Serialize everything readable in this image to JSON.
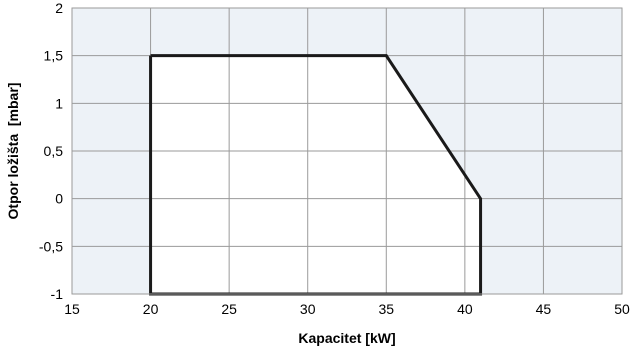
{
  "chart_data": {
    "type": "line",
    "title": "",
    "xlabel": "Kapacitet [kW]",
    "ylabel": "Otpor ložišta  [mbar]",
    "xlim": [
      15,
      50
    ],
    "ylim": [
      -1,
      2
    ],
    "x_ticks": [
      15,
      20,
      25,
      30,
      35,
      40,
      45,
      50
    ],
    "y_ticks": [
      -1,
      -0.5,
      0,
      0.5,
      1,
      1.5,
      2
    ],
    "x_tick_labels": [
      "15",
      "20",
      "25",
      "30",
      "35",
      "40",
      "45",
      "50"
    ],
    "y_tick_labels": [
      "-1",
      "-0,5",
      "0",
      "0,5",
      "1",
      "1,5",
      "2"
    ],
    "grid": true,
    "legend": "none",
    "colors": {
      "plot_background": "#edf2f7",
      "region_fill": "#ffffff",
      "grid": "#9a9a9a",
      "outline": "#1a1a1a",
      "text": "#000000"
    },
    "series": [
      {
        "x": [
          20,
          35,
          41,
          41,
          20,
          20
        ],
        "y": [
          1.5,
          1.5,
          0,
          -1,
          -1,
          1.5
        ]
      }
    ]
  }
}
